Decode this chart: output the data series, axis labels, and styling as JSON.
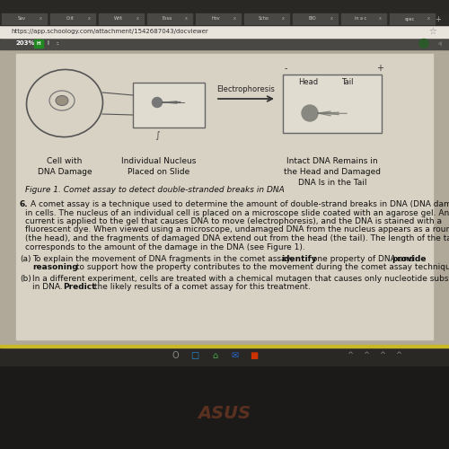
{
  "url": "https://app.schoology.com/attachment/1542687043/docviewer",
  "zoom_label": "203%",
  "figure_caption": "Figure 1. Comet assay to detect double-stranded breaks in DNA",
  "label1": "Cell with\nDNA Damage",
  "label2": "Individual Nucleus\nPlaced on Slide",
  "label3": "Intact DNA Remains in\nthe Head and Damaged\nDNA Is in the Tail",
  "electrophoresis_label": "Electrophoresis",
  "head_label": "Head",
  "tail_label": "Tail",
  "minus_sign": "-",
  "plus_sign": "+",
  "tab_names": [
    "Sav",
    "Crit",
    "Writ",
    "Essa",
    "Hov",
    "Scho",
    "BIO",
    "in a c",
    "spec"
  ],
  "browser_tab_bg": "#3a3835",
  "browser_url_bg": "#f0eeea",
  "toolbar_bg": "#5a5855",
  "page_bg": "#b8b0a0",
  "content_bg": "#ddd8cc",
  "diagram_bg": "#e8e4d8",
  "taskbar_bg": "#2a2825",
  "winbar_bg": "#c8c030",
  "asus_color": "#5a3a2a",
  "text_color": "#111111",
  "tab_row1_bg": "#2d2b28",
  "tab_row2_bg": "#4a4845"
}
